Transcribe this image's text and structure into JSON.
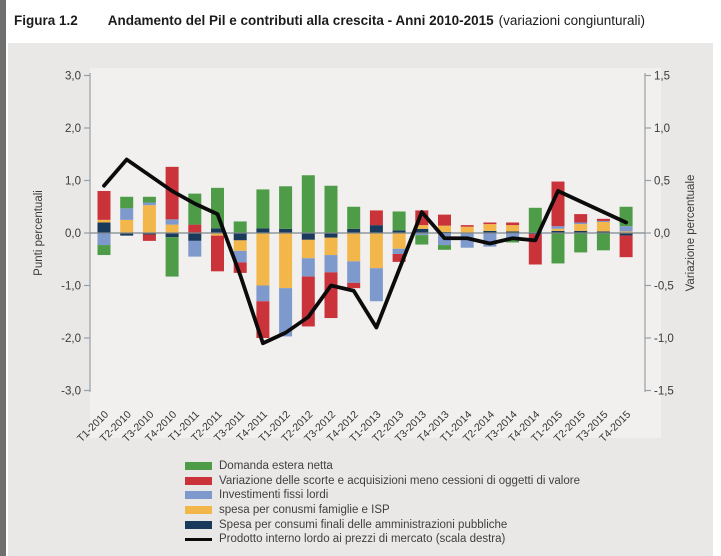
{
  "page": {
    "figure_label": "Figura 1.2",
    "title": "Andamento del Pil e contributi alla crescita - Anni 2010-2015",
    "title_suffix": "(variazioni congiunturali)"
  },
  "axis_left": {
    "title": "Punti percentuali",
    "ticks": [
      "3,0",
      "2,0",
      "1,0",
      "0,0",
      "-1,0",
      "-2,0",
      "-3,0"
    ],
    "range": [
      -3.0,
      3.0
    ]
  },
  "axis_right": {
    "title": "Variazione percentuale",
    "ticks": [
      "1,5",
      "1,0",
      "0,5",
      "0,0",
      "-0,5",
      "-1,0",
      "-1,5"
    ],
    "range": [
      -1.5,
      1.5
    ]
  },
  "legend": {
    "items": [
      {
        "label": "Domanda estera netta",
        "color": "#4e9c47",
        "type": "box"
      },
      {
        "label": "Variazione delle scorte e acquisizioni meno cessioni di oggetti di valore",
        "color": "#cb333b",
        "type": "box"
      },
      {
        "label": "Investimenti fissi lordi",
        "color": "#7e99cc",
        "type": "box"
      },
      {
        "label": "spesa per conusmi famiglie e ISP",
        "color": "#f3b64a",
        "type": "box"
      },
      {
        "label": "Spesa per consumi finali delle amministrazioni pubbliche",
        "color": "#1a3a5c",
        "type": "box"
      },
      {
        "label": "Prodotto interno lordo ai prezzi di mercato (scala destra)",
        "color": "#0b0b0b",
        "type": "line"
      }
    ]
  },
  "chart_data": {
    "type": "bar",
    "subtype": "stacked-bars-with-line-overlay",
    "grid": "zero-line-only",
    "legend_position": "bottom-left",
    "ylim_left": [
      -3.0,
      3.0
    ],
    "ylim_right": [
      -1.5,
      1.5
    ],
    "xlabel": "",
    "ylabel_left": "Punti percentuali",
    "ylabel_right": "Variazione percentuale",
    "categories": [
      "T1-2010",
      "T2-2010",
      "T3-2010",
      "T4-2010",
      "T1-2011",
      "T2-2011",
      "T3-2011",
      "T4-2011",
      "T1-2012",
      "T2-2012",
      "T3-2012",
      "T4-2012",
      "T1-2013",
      "T2-2013",
      "T3-2013",
      "T4-2013",
      "T1-2014",
      "T2-2014",
      "T3-2014",
      "T4-2014",
      "T1-2015",
      "T2-2015",
      "T3-2015",
      "T4-2015"
    ],
    "series": [
      {
        "name": "Spesa per consumi finali delle amministrazioni pubbliche",
        "color": "#1a3a5c",
        "values": [
          0.2,
          -0.05,
          -0.03,
          -0.08,
          -0.15,
          0.09,
          -0.14,
          0.09,
          0.08,
          -0.13,
          -0.09,
          0.08,
          0.15,
          0.05,
          0.08,
          0.02,
          0.0,
          0.04,
          0.03,
          -0.02,
          0.04,
          0.04,
          0.03,
          -0.05
        ]
      },
      {
        "name": "spesa per conusmi famiglie e ISP",
        "color": "#f3b64a",
        "values": [
          0.05,
          0.25,
          0.53,
          0.16,
          0.0,
          -0.05,
          -0.2,
          -1.0,
          -1.05,
          -0.35,
          -0.33,
          -0.54,
          -0.67,
          -0.3,
          0.07,
          0.12,
          0.12,
          0.13,
          0.12,
          0.0,
          0.04,
          0.13,
          0.18,
          0.03
        ]
      },
      {
        "name": "Investimenti fissi lordi",
        "color": "#7e99cc",
        "values": [
          -0.23,
          0.22,
          0.05,
          0.1,
          -0.3,
          0.0,
          -0.22,
          -0.3,
          -0.92,
          -0.35,
          -0.33,
          -0.41,
          -0.63,
          -0.1,
          -0.04,
          -0.23,
          -0.28,
          -0.26,
          -0.12,
          0.0,
          0.05,
          0.03,
          0.02,
          0.1
        ]
      },
      {
        "name": "Variazione delle scorte e acquisizioni meno cessioni di oggetti di valore",
        "color": "#cb333b",
        "values": [
          0.55,
          0.0,
          -0.12,
          1.0,
          0.16,
          -0.68,
          -0.2,
          -0.7,
          0.0,
          -0.95,
          -0.87,
          -0.1,
          0.28,
          -0.15,
          0.28,
          0.21,
          0.03,
          0.03,
          0.05,
          -0.58,
          0.85,
          0.16,
          0.04,
          -0.41
        ]
      },
      {
        "name": "Domanda estera netta",
        "color": "#4e9c47",
        "values": [
          -0.19,
          0.22,
          0.11,
          -0.75,
          0.59,
          0.77,
          0.22,
          0.74,
          0.81,
          1.1,
          0.9,
          0.42,
          0.0,
          0.36,
          -0.18,
          -0.09,
          0.0,
          0.0,
          -0.06,
          0.48,
          -0.58,
          -0.37,
          -0.33,
          0.37
        ]
      }
    ],
    "line_series": {
      "name": "Prodotto interno lordo ai prezzi di mercato (scala destra)",
      "color": "#0b0b0b",
      "axis": "right",
      "values": [
        0.45,
        0.7,
        0.55,
        0.4,
        0.28,
        0.18,
        -0.4,
        -1.05,
        -0.95,
        -0.8,
        -0.5,
        -0.55,
        -0.9,
        -0.35,
        0.2,
        -0.05,
        -0.05,
        -0.1,
        -0.05,
        -0.07,
        0.4,
        0.3,
        0.2,
        0.1
      ]
    }
  }
}
